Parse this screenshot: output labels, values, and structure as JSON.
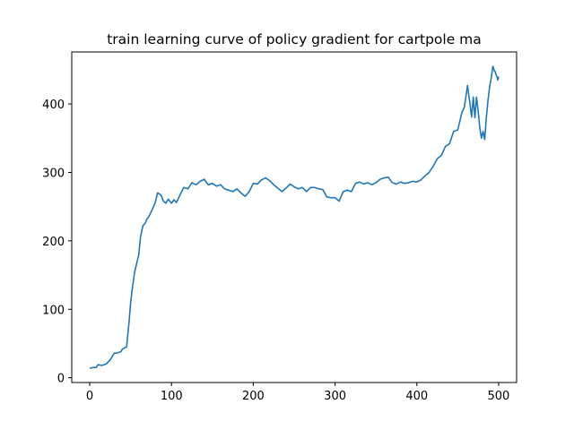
{
  "chart_data": {
    "type": "line",
    "title": "train learning curve of policy gradient for cartpole ma",
    "xlabel": "",
    "ylabel": "",
    "xlim": [
      -22,
      522
    ],
    "ylim": [
      -7,
      476
    ],
    "xticks": [
      0,
      100,
      200,
      300,
      400,
      500
    ],
    "yticks": [
      0,
      100,
      200,
      300,
      400
    ],
    "grid": false,
    "legend": "none",
    "line_color": "#1f77b4",
    "series": [
      {
        "x": [
          0,
          5,
          8,
          10,
          15,
          20,
          25,
          30,
          33,
          38,
          40,
          45,
          48,
          50,
          52,
          55,
          58,
          60,
          62,
          65,
          68,
          70,
          72,
          75,
          78,
          80,
          83,
          86,
          88,
          90,
          93,
          96,
          100,
          103,
          106,
          110,
          115,
          120,
          125,
          130,
          135,
          140,
          145,
          150,
          155,
          160,
          165,
          170,
          175,
          180,
          185,
          190,
          195,
          200,
          205,
          210,
          215,
          220,
          225,
          230,
          235,
          240,
          245,
          250,
          255,
          260,
          265,
          270,
          275,
          280,
          285,
          290,
          295,
          300,
          305,
          310,
          315,
          320,
          325,
          330,
          335,
          340,
          345,
          350,
          355,
          360,
          365,
          370,
          375,
          380,
          385,
          390,
          395,
          400,
          405,
          410,
          415,
          420,
          425,
          430,
          435,
          440,
          445,
          450,
          455,
          458,
          460,
          462,
          465,
          467,
          469,
          471,
          473,
          475,
          477,
          479,
          481,
          483,
          485,
          487,
          489,
          491,
          493,
          495,
          496,
          497,
          498,
          499,
          500
        ],
        "y": [
          14,
          15,
          15,
          19,
          18,
          20,
          26,
          36,
          36,
          38,
          42,
          45,
          80,
          110,
          130,
          155,
          170,
          180,
          205,
          222,
          226,
          232,
          235,
          242,
          250,
          256,
          270,
          268,
          265,
          258,
          255,
          261,
          255,
          260,
          256,
          266,
          278,
          276,
          285,
          282,
          287,
          290,
          282,
          284,
          280,
          282,
          276,
          274,
          272,
          276,
          270,
          265,
          272,
          284,
          283,
          289,
          292,
          288,
          282,
          277,
          272,
          277,
          283,
          279,
          276,
          278,
          272,
          278,
          278,
          276,
          275,
          264,
          263,
          263,
          258,
          272,
          274,
          272,
          284,
          286,
          283,
          285,
          282,
          285,
          290,
          292,
          293,
          285,
          283,
          286,
          284,
          285,
          287,
          286,
          289,
          295,
          300,
          309,
          320,
          325,
          338,
          342,
          360,
          362,
          387,
          395,
          410,
          427,
          400,
          381,
          410,
          380,
          410,
          390,
          365,
          350,
          360,
          348,
          380,
          405,
          425,
          438,
          455,
          448,
          447,
          442,
          440,
          435,
          440
        ]
      }
    ]
  }
}
